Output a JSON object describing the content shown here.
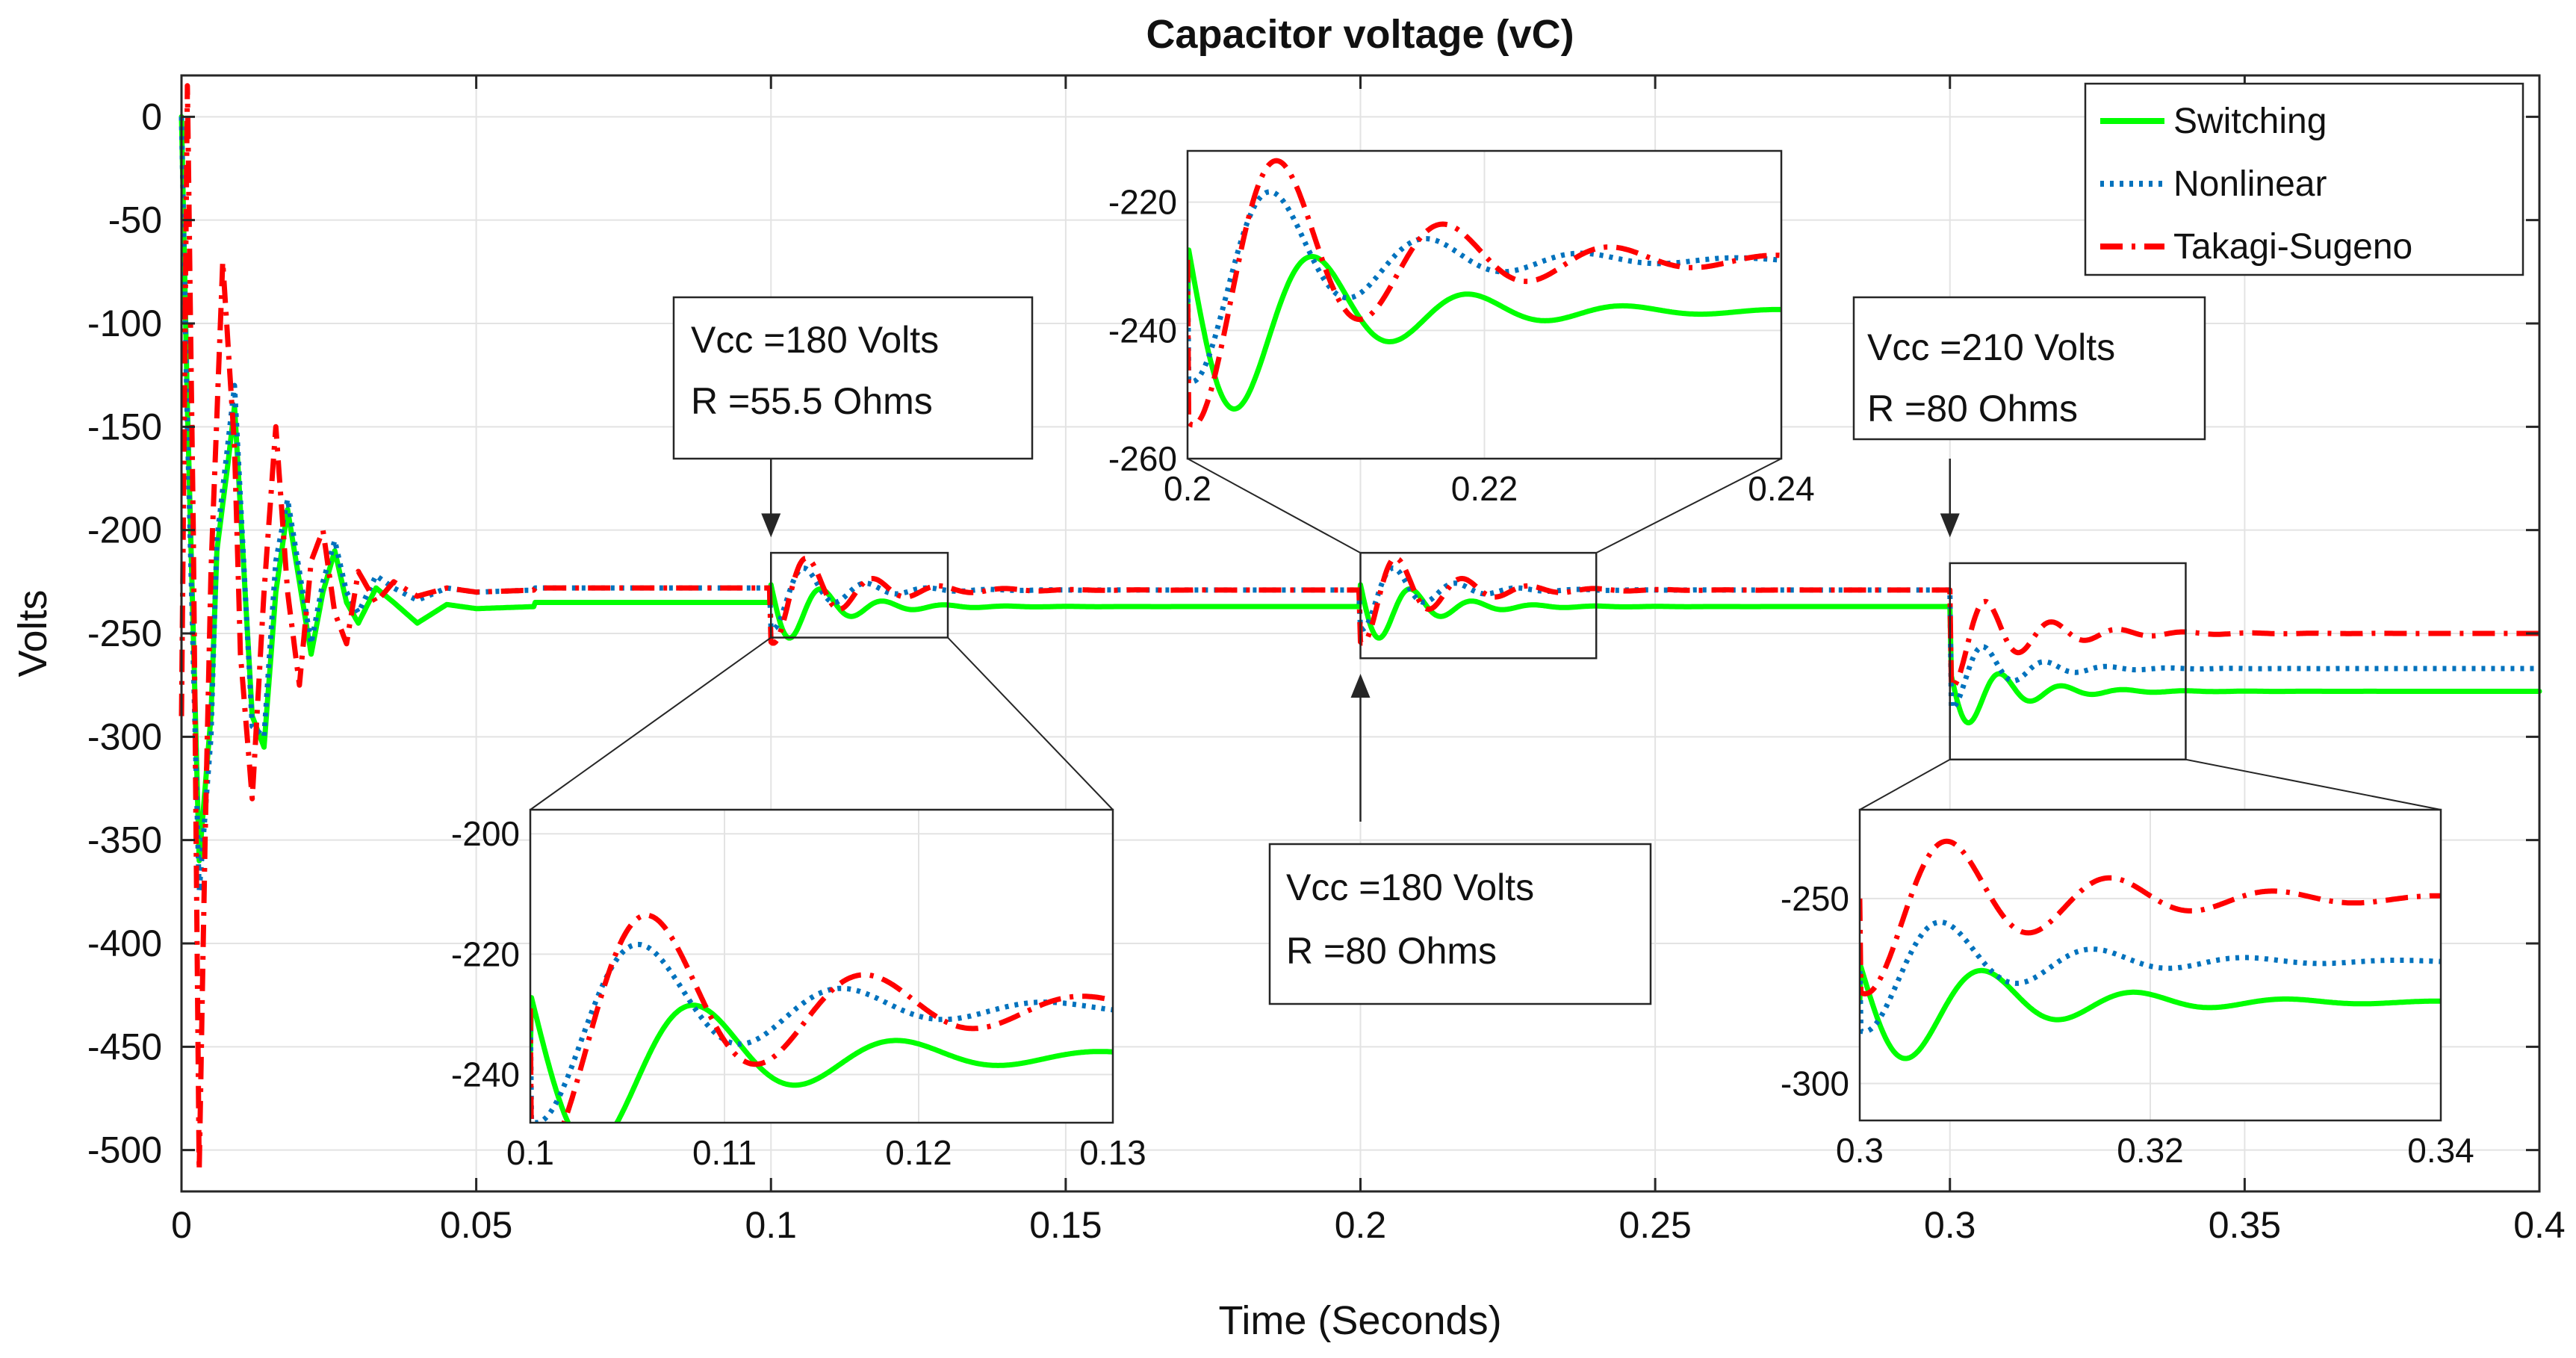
{
  "chart_data": {
    "type": "line",
    "title": "Capacitor voltage (vC)",
    "xlabel": "Time (Seconds)",
    "ylabel": "Volts",
    "xlim": [
      0,
      0.4
    ],
    "ylim": [
      -520,
      20
    ],
    "xticks": [
      0,
      0.05,
      0.1,
      0.15,
      0.2,
      0.25,
      0.3,
      0.35,
      0.4
    ],
    "xtick_labels": [
      "0",
      "0.05",
      "0.1",
      "0.15",
      "0.2",
      "0.25",
      "0.3",
      "0.35",
      "0.4"
    ],
    "yticks": [
      0,
      -50,
      -100,
      -150,
      -200,
      -250,
      -300,
      -350,
      -400,
      -450,
      -500
    ],
    "ytick_labels": [
      "0",
      "-50",
      "-100",
      "-150",
      "-200",
      "-250",
      "-300",
      "-350",
      "-400",
      "-450",
      "-500"
    ],
    "grid": true,
    "legend_position": "top-right",
    "series": [
      {
        "name": "Switching",
        "color": "#00ff00",
        "style": "solid",
        "steady": [
          [
            0,
            -235
          ],
          [
            0.1,
            -237
          ],
          [
            0.2,
            -237
          ],
          [
            0.3,
            -278
          ]
        ],
        "x": [
          0,
          0.001,
          0.003,
          0.005,
          0.006,
          0.008,
          0.009,
          0.01,
          0.012,
          0.014,
          0.016,
          0.018,
          0.02,
          0.022,
          0.024,
          0.026,
          0.028,
          0.03,
          0.033,
          0.036,
          0.04,
          0.045,
          0.05,
          0.06,
          0.1
        ],
        "y": [
          0,
          -140,
          -360,
          -290,
          -210,
          -165,
          -140,
          -190,
          -290,
          -305,
          -230,
          -190,
          -225,
          -260,
          -230,
          -210,
          -235,
          -245,
          -228,
          -235,
          -245,
          -236,
          -238,
          -237,
          -237
        ]
      },
      {
        "name": "Nonlinear",
        "color": "#0072bd",
        "style": "dotted",
        "steady": [
          [
            0,
            -228
          ],
          [
            0.1,
            -229
          ],
          [
            0.2,
            -229
          ],
          [
            0.3,
            -267
          ]
        ],
        "x": [
          0,
          0.001,
          0.003,
          0.005,
          0.006,
          0.008,
          0.009,
          0.01,
          0.012,
          0.014,
          0.016,
          0.018,
          0.02,
          0.022,
          0.024,
          0.026,
          0.028,
          0.03,
          0.033,
          0.036,
          0.04,
          0.045,
          0.05,
          0.06,
          0.1
        ],
        "y": [
          0,
          -150,
          -375,
          -300,
          -205,
          -155,
          -130,
          -185,
          -295,
          -300,
          -215,
          -185,
          -220,
          -255,
          -225,
          -205,
          -230,
          -240,
          -222,
          -228,
          -234,
          -228,
          -230,
          -229,
          -229
        ]
      },
      {
        "name": "Takagi-Sugeno",
        "color": "#ff0000",
        "style": "dashdot",
        "steady": [
          [
            0,
            -228
          ],
          [
            0.1,
            -229
          ],
          [
            0.2,
            -229
          ],
          [
            0.3,
            -250
          ]
        ],
        "x": [
          0,
          0.001,
          0.002,
          0.003,
          0.004,
          0.005,
          0.007,
          0.009,
          0.01,
          0.012,
          0.014,
          0.016,
          0.018,
          0.02,
          0.022,
          0.024,
          0.026,
          0.028,
          0.03,
          0.033,
          0.036,
          0.04,
          0.045,
          0.05,
          0.06,
          0.1
        ],
        "y": [
          -290,
          15,
          -200,
          -510,
          -350,
          -220,
          -70,
          -160,
          -260,
          -330,
          -230,
          -150,
          -230,
          -275,
          -215,
          -200,
          -240,
          -255,
          -220,
          -235,
          -225,
          -232,
          -228,
          -230,
          -229,
          -229
        ]
      }
    ],
    "insets": [
      {
        "name": "inset-0.1",
        "xlim": [
          0.1,
          0.13
        ],
        "ylim": [
          -248,
          -196
        ],
        "xticks": [
          0.1,
          0.11,
          0.12,
          0.13
        ],
        "xtick_labels": [
          "0.1",
          "0.11",
          "0.12",
          "0.13"
        ],
        "yticks": [
          -200,
          -220,
          -240
        ],
        "ytick_labels": [
          "-200",
          "-220",
          "-240"
        ],
        "region_ylim": [
          -252,
          -211
        ]
      },
      {
        "name": "inset-0.2",
        "xlim": [
          0.2,
          0.24
        ],
        "ylim": [
          -260,
          -212
        ],
        "xticks": [
          0.2,
          0.22,
          0.24
        ],
        "xtick_labels": [
          "0.2",
          "0.22",
          "0.24"
        ],
        "yticks": [
          -220,
          -240,
          -260
        ],
        "ytick_labels": [
          "-220",
          "-240",
          "-260"
        ],
        "region_ylim": [
          -262,
          -211
        ]
      },
      {
        "name": "inset-0.3",
        "xlim": [
          0.3,
          0.34
        ],
        "ylim": [
          -310,
          -226
        ],
        "xticks": [
          0.3,
          0.32,
          0.34
        ],
        "xtick_labels": [
          "0.3",
          "0.32",
          "0.34"
        ],
        "yticks": [
          -250,
          -300
        ],
        "ytick_labels": [
          "-250",
          "-300"
        ],
        "region_ylim": [
          -311,
          -216
        ]
      }
    ],
    "annotations": [
      {
        "name": "annotation-vcc180-r55",
        "lines": [
          "Vcc =180 Volts",
          "R =55.5 Ohms"
        ],
        "arrow_x": 0.1,
        "arrow_y": -210
      },
      {
        "name": "annotation-vcc180-r80",
        "lines": [
          "Vcc =180 Volts",
          "R =80 Ohms"
        ],
        "arrow_x": 0.2,
        "arrow_y": -263
      },
      {
        "name": "annotation-vcc210-r80",
        "lines": [
          "Vcc =210 Volts",
          "R =80 Ohms"
        ],
        "arrow_x": 0.3,
        "arrow_y": -210
      }
    ]
  }
}
